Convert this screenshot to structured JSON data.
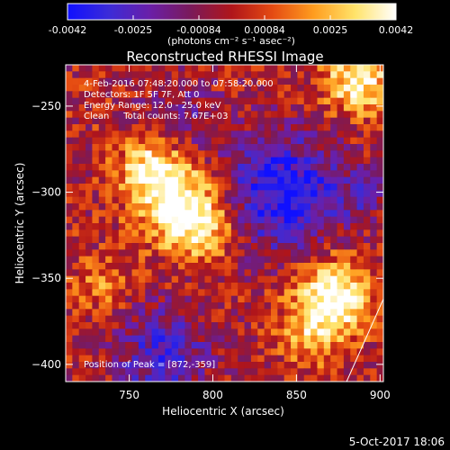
{
  "chart_data": {
    "type": "heatmap",
    "title": "Reconstructed RHESSI Image",
    "xlabel": "Heliocentric X (arcsec)",
    "ylabel": "Heliocentric Y (arcsec)",
    "xlim": [
      712,
      902
    ],
    "ylim": [
      -410,
      -226
    ],
    "xticks": [
      750,
      800,
      850,
      900
    ],
    "yticks": [
      -250,
      -300,
      -350,
      -400
    ],
    "colorbar": {
      "label": "(photons cm⁻² s⁻¹ asec⁻²)",
      "range": [
        -0.0042,
        0.0042
      ],
      "ticks": [
        "-0.0042",
        "-0.0025",
        "-0.00084",
        "0.00084",
        "0.0025",
        "0.0042"
      ],
      "colors": [
        "#1010ff",
        "#3b2bd8",
        "#6a1fa8",
        "#7a1a5a",
        "#b0151a",
        "#e54b12",
        "#ff9d1f",
        "#ffe36a",
        "#ffffff"
      ]
    },
    "annotations": [
      "4-Feb-2016 07:48:20.000 to 07:58:20.000",
      "Detectors: 1F 5F 7F, Att 0",
      "Energy Range: 12.0 - 25.0 keV",
      "Clean     Total counts: 7.67E+03",
      "Position of Peak = [872,-359]"
    ],
    "peak": [
      872,
      -359
    ],
    "sources": [
      {
        "x": 778,
        "y": -305,
        "amplitude": 0.0042,
        "width": 17
      },
      {
        "x": 762,
        "y": -285,
        "amplitude": 0.003,
        "width": 13
      },
      {
        "x": 795,
        "y": -322,
        "amplitude": 0.0028,
        "width": 13
      },
      {
        "x": 887,
        "y": -235,
        "amplitude": 0.004,
        "width": 14
      },
      {
        "x": 872,
        "y": -359,
        "amplitude": 0.0042,
        "width": 15
      },
      {
        "x": 860,
        "y": -380,
        "amplitude": 0.0024,
        "width": 14
      },
      {
        "x": 733,
        "y": -355,
        "amplitude": 0.0016,
        "width": 11
      },
      {
        "x": 842,
        "y": -300,
        "amplitude": -0.004,
        "width": 24
      },
      {
        "x": 770,
        "y": -395,
        "amplitude": -0.0028,
        "width": 20
      },
      {
        "x": 782,
        "y": -258,
        "amplitude": -0.0016,
        "width": 16
      },
      {
        "x": 888,
        "y": -302,
        "amplitude": -0.0013,
        "width": 12
      }
    ],
    "limb_line": [
      [
        880,
        -410
      ],
      [
        902,
        -362
      ]
    ]
  },
  "footer": {
    "date": "5-Oct-2017 18:06"
  }
}
